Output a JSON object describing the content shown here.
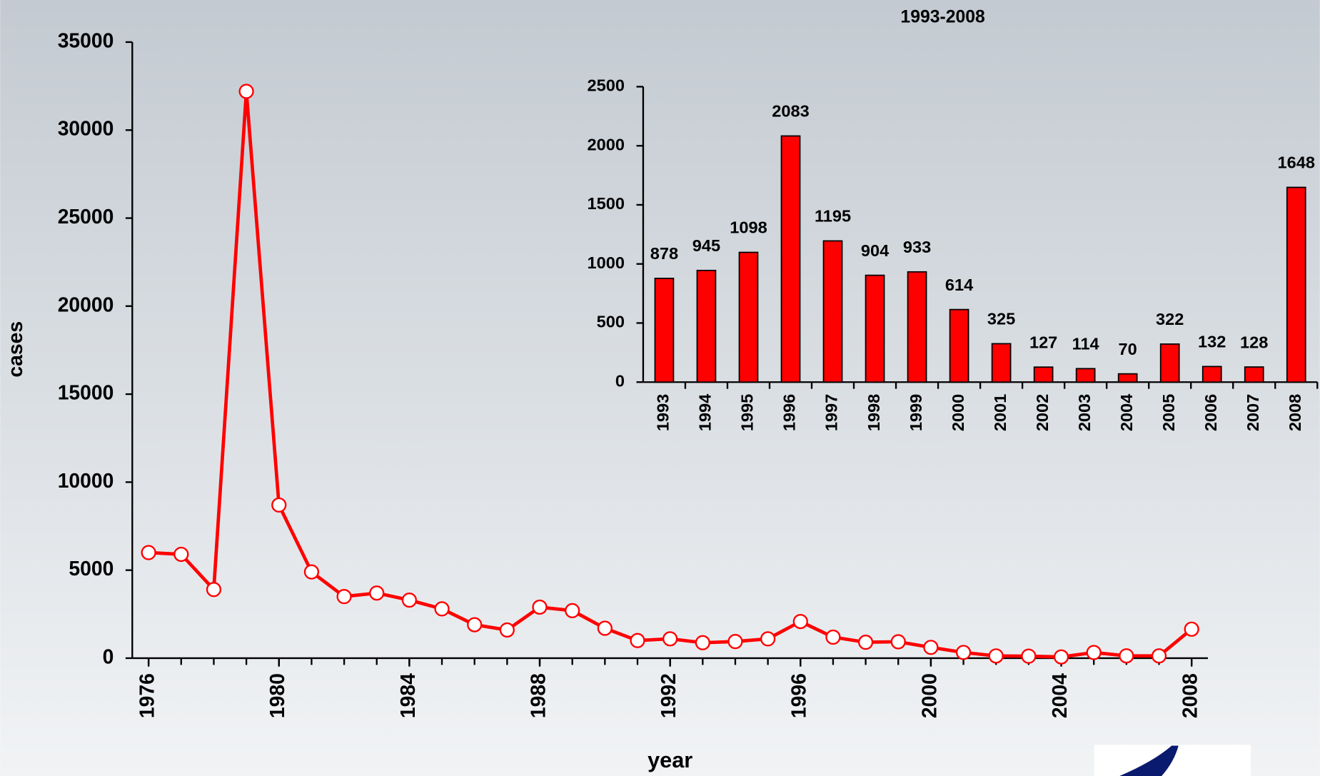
{
  "chart_data": [
    {
      "type": "line",
      "x_label": "year",
      "y_label": "cases",
      "x": [
        1976,
        1977,
        1978,
        1979,
        1980,
        1981,
        1982,
        1983,
        1984,
        1985,
        1986,
        1987,
        1988,
        1989,
        1990,
        1991,
        1992,
        1993,
        1994,
        1995,
        1996,
        1997,
        1998,
        1999,
        2000,
        2001,
        2002,
        2003,
        2004,
        2005,
        2006,
        2007,
        2008
      ],
      "series": [
        {
          "color": "#ff0000",
          "values": [
            6000,
            5900,
            3900,
            32200,
            8700,
            4900,
            3500,
            3700,
            3300,
            2800,
            1900,
            1600,
            2900,
            2700,
            1700,
            1000,
            1100,
            878,
            945,
            1098,
            2083,
            1195,
            904,
            933,
            614,
            325,
            127,
            114,
            70,
            322,
            132,
            128,
            1648
          ]
        }
      ],
      "xlim": [
        1975.5,
        2008.5
      ],
      "xticks": [
        1976,
        1980,
        1984,
        1988,
        1992,
        1996,
        2000,
        2004,
        2008
      ],
      "ylim": [
        0,
        35000
      ],
      "yticks": [
        0,
        5000,
        10000,
        15000,
        20000,
        25000,
        30000,
        35000
      ]
    },
    {
      "type": "bar",
      "title": "1993-2008",
      "categories": [
        "1993",
        "1994",
        "1995",
        "1996",
        "1997",
        "1998",
        "1999",
        "2000",
        "2001",
        "2002",
        "2003",
        "2004",
        "2005",
        "2006",
        "2007",
        "2008"
      ],
      "values": [
        878,
        945,
        1098,
        2083,
        1195,
        904,
        933,
        614,
        325,
        127,
        114,
        70,
        322,
        132,
        128,
        1648
      ],
      "color": "#ff0000",
      "ylim": [
        0,
        2500
      ],
      "yticks": [
        0,
        500,
        1000,
        1500,
        2000,
        2500
      ]
    }
  ]
}
